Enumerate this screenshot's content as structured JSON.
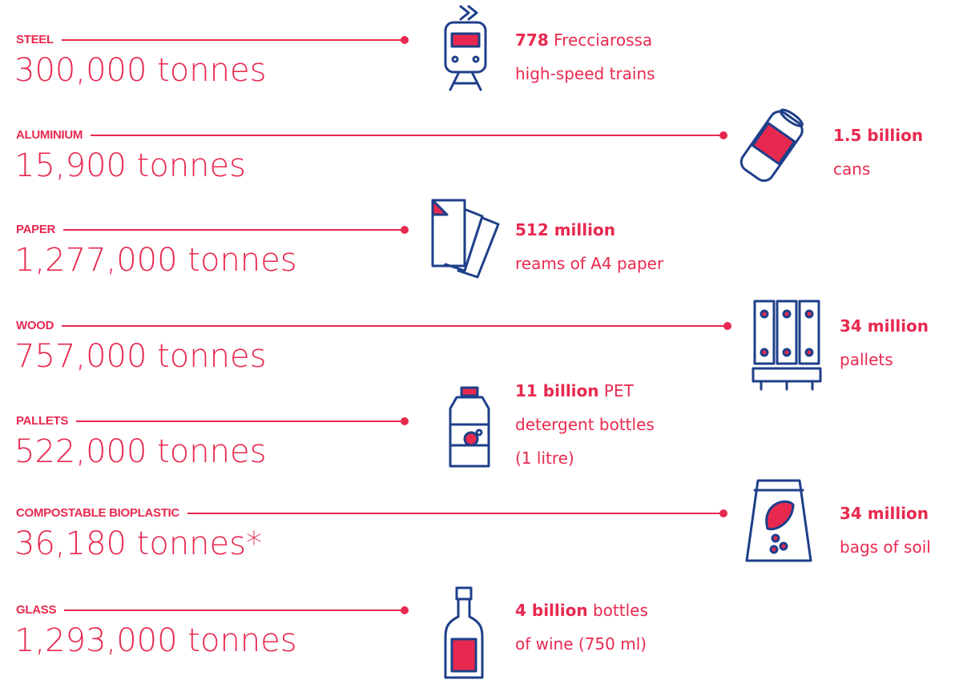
{
  "items": [
    {
      "label": "STEEL",
      "amount": "300,000 tonnes",
      "equivalent": {
        "highlight": "778",
        "after": "Frecciarossa",
        "lines": [
          "high-speed trains"
        ]
      }
    },
    {
      "label": "ALUMINIUM",
      "amount": "15,900 tonnes",
      "equivalent": {
        "highlight": "1.5 billion",
        "lines": [
          "cans"
        ]
      }
    },
    {
      "label": "PAPER",
      "amount": "1,277,000 tonnes",
      "equivalent": {
        "highlight": "512 million",
        "lines": [
          "reams of A4 paper"
        ]
      }
    },
    {
      "label": "WOOD",
      "amount": "757,000 tonnes",
      "equivalent": {
        "highlight": "34 million",
        "lines": [
          "pallets"
        ]
      }
    },
    {
      "label": "PALLETS",
      "amount": "522,000 tonnes",
      "equivalent": {
        "highlight": "11 billion",
        "after": "PET",
        "lines": [
          "detergent bottles",
          "(1 litre)"
        ]
      }
    },
    {
      "label": "COMPOSTABLE BIOPLASTIC",
      "amount": "36,180 tonnes*",
      "equivalent": {
        "highlight": "34 million",
        "lines": [
          "bags of soil"
        ]
      }
    },
    {
      "label": "GLASS",
      "amount": "1,293,000 tonnes",
      "equivalent": {
        "highlight": "4 billion",
        "after": "bottles",
        "lines": [
          "of wine (750 ml)"
        ]
      }
    }
  ]
}
